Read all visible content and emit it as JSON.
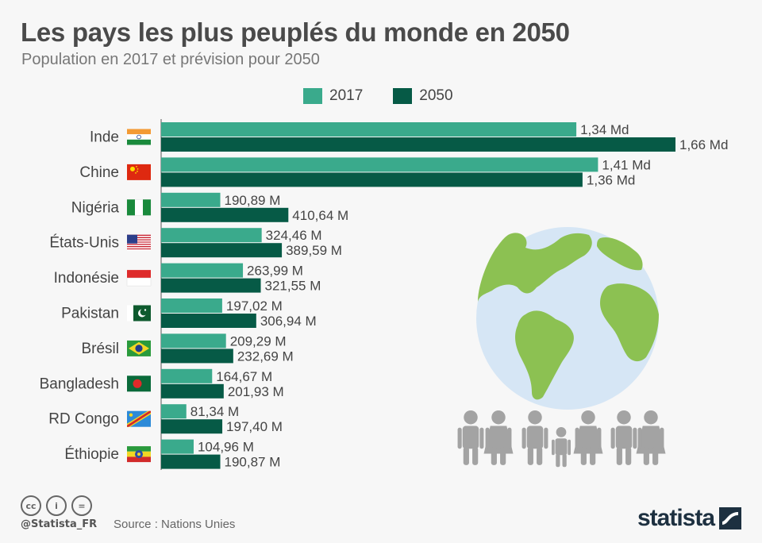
{
  "header": {
    "title": "Les pays les plus peuplés du monde en 2050",
    "subtitle": "Population en 2017 et prévision pour 2050"
  },
  "colors": {
    "series_2017": "#3aaa8c",
    "series_2050": "#065a46",
    "globe_water": "#d6e6f5",
    "globe_land": "#8cc152",
    "people": "#a3a3a3"
  },
  "chart_data": {
    "type": "bar",
    "orientation": "horizontal",
    "title": "Les pays les plus peuplés du monde en 2050",
    "subtitle": "Population en 2017 et prévision pour 2050",
    "unit": "millions",
    "categories": [
      "Inde",
      "Chine",
      "Nigéria",
      "États-Unis",
      "Indonésie",
      "Pakistan",
      "Brésil",
      "Bangladesh",
      "RD Congo",
      "Éthiopie"
    ],
    "flags": [
      "india-flag",
      "china-flag",
      "nigeria-flag",
      "usa-flag",
      "indonesia-flag",
      "pakistan-flag",
      "brazil-flag",
      "bangladesh-flag",
      "drc-flag",
      "ethiopia-flag"
    ],
    "series": [
      {
        "name": "2017",
        "values": [
          1340,
          1410,
          190.89,
          324.46,
          263.99,
          197.02,
          209.29,
          164.67,
          81.34,
          104.96
        ],
        "labels": [
          "1,34 Md",
          "1,41 Md",
          "190,89 M",
          "324,46 M",
          "263,99 M",
          "197,02 M",
          "209,29 M",
          "164,67 M",
          "81,34 M",
          "104,96 M"
        ]
      },
      {
        "name": "2050",
        "values": [
          1660,
          1360,
          410.64,
          389.59,
          321.55,
          306.94,
          232.69,
          201.93,
          197.4,
          190.87
        ],
        "labels": [
          "1,66 Md",
          "1,36 Md",
          "410,64 M",
          "389,59 M",
          "321,55 M",
          "306,94 M",
          "232,69 M",
          "201,93 M",
          "197,40 M",
          "190,87 M"
        ]
      }
    ],
    "legend_position": "top",
    "grid": false
  },
  "footer": {
    "handle": "@Statista_FR",
    "source": "Source : Nations Unies",
    "logo": "statista",
    "cc_icons": [
      "cc-icon",
      "by-icon",
      "nd-icon"
    ],
    "cc_labels": [
      "cc",
      "i",
      "="
    ]
  }
}
